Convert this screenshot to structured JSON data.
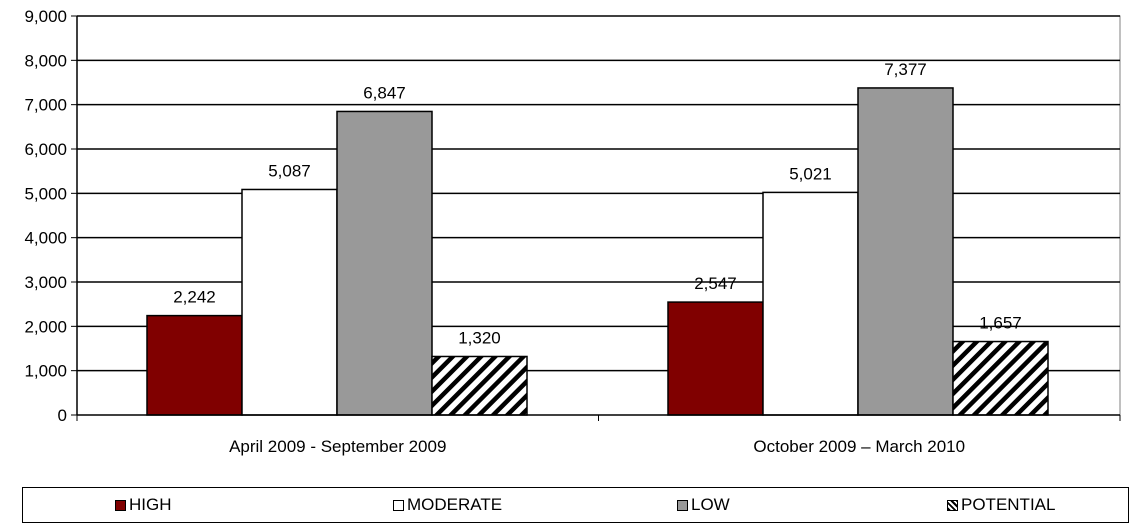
{
  "chart_data": {
    "type": "bar",
    "categories": [
      "April 2009 - September 2009",
      "October 2009 – March 2010"
    ],
    "series": [
      {
        "name": "HIGH",
        "values": [
          2242,
          2547
        ],
        "labels": [
          "2,242",
          "2,547"
        ],
        "color": "#800000",
        "pattern": "solid"
      },
      {
        "name": "MODERATE",
        "values": [
          5087,
          5021
        ],
        "labels": [
          "5,087",
          "5,021"
        ],
        "color": "#ffffff",
        "pattern": "solid"
      },
      {
        "name": "LOW",
        "values": [
          6847,
          7377
        ],
        "labels": [
          "6,847",
          "7,377"
        ],
        "color": "#999999",
        "pattern": "solid"
      },
      {
        "name": "POTENTIAL",
        "values": [
          1320,
          1657
        ],
        "labels": [
          "1,320",
          "1,657"
        ],
        "color": "#ffffff",
        "pattern": "diagonal-hatch"
      }
    ],
    "ylim": [
      0,
      9000
    ],
    "yticks": [
      0,
      1000,
      2000,
      3000,
      4000,
      5000,
      6000,
      7000,
      8000,
      9000
    ],
    "ytick_labels": [
      "0",
      "1,000",
      "2,000",
      "3,000",
      "4,000",
      "5,000",
      "6,000",
      "7,000",
      "8,000",
      "9,000"
    ],
    "grid": true,
    "legend_position": "bottom",
    "title": "",
    "xlabel": "",
    "ylabel": ""
  }
}
